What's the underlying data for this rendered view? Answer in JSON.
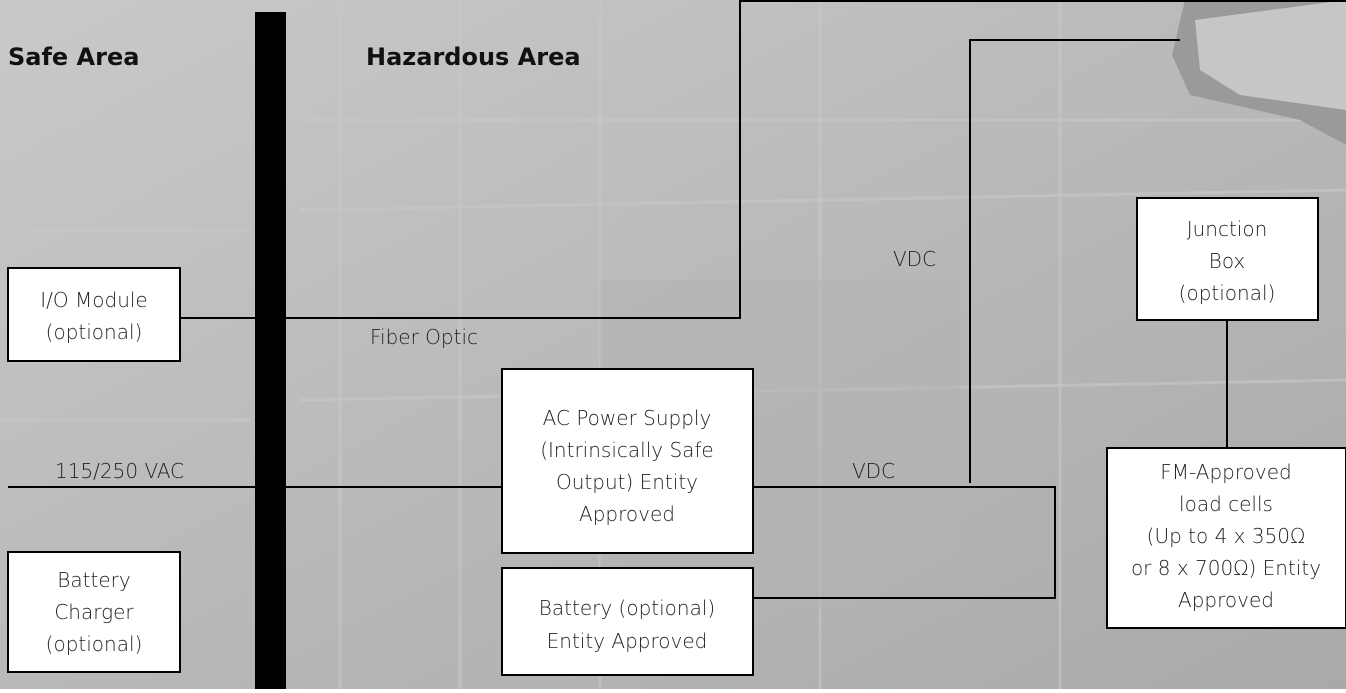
{
  "areas": {
    "safe": "Safe Area",
    "hazardous": "Hazardous Area"
  },
  "connections": {
    "fiber": "Fiber Optic",
    "ac": "115/250 VAC",
    "vdc_lower": "VDC",
    "vdc_upper": "VDC"
  },
  "boxes": [
    {
      "lines": [
        "I/O Module",
        "(optional)"
      ]
    },
    {
      "lines": [
        "Battery",
        "Charger",
        "(optional)"
      ]
    },
    {
      "lines": [
        "AC Power Supply",
        "(Intrinsically Safe",
        "Output) Entity",
        "Approved"
      ]
    },
    {
      "lines": [
        "Battery (optional)",
        "Entity Approved"
      ]
    },
    {
      "lines": [
        "Junction",
        "Box",
        "(optional)"
      ]
    },
    {
      "lines": [
        "FM-Approved",
        "load cells",
        "(Up to 4 x 350Ω",
        "or 8 x 700Ω) Entity",
        "Approved"
      ]
    }
  ]
}
